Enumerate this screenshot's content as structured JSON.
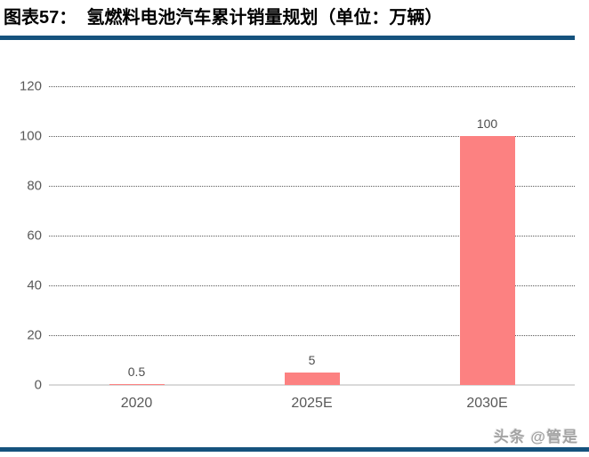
{
  "header": {
    "title": "图表57：  氢燃料电池汽车累计销量规划（单位：万辆）"
  },
  "watermark": {
    "text": "头条 @管是"
  },
  "colors": {
    "rule_navy": "#15527D",
    "bar_salmon": "#FC8181",
    "gridline_gray": "#595959",
    "baseline_gray": "#D9D9D9",
    "tick_text_gray": "#595959"
  },
  "chart_data": {
    "type": "bar",
    "title": "氢燃料电池汽车累计销量规划（单位：万辆）",
    "categories": [
      "2020",
      "2025E",
      "2030E"
    ],
    "values": [
      0.5,
      5,
      100
    ],
    "value_labels": [
      "0.5",
      "5",
      "100"
    ],
    "xlabel": "",
    "ylabel": "",
    "ylim": [
      0,
      120
    ],
    "yticks": [
      0,
      20,
      40,
      60,
      80,
      100,
      120
    ],
    "grid": "horizontal dotted gridlines, solid light baseline at 0",
    "legend": "none",
    "bar_color": "#FC8181"
  }
}
